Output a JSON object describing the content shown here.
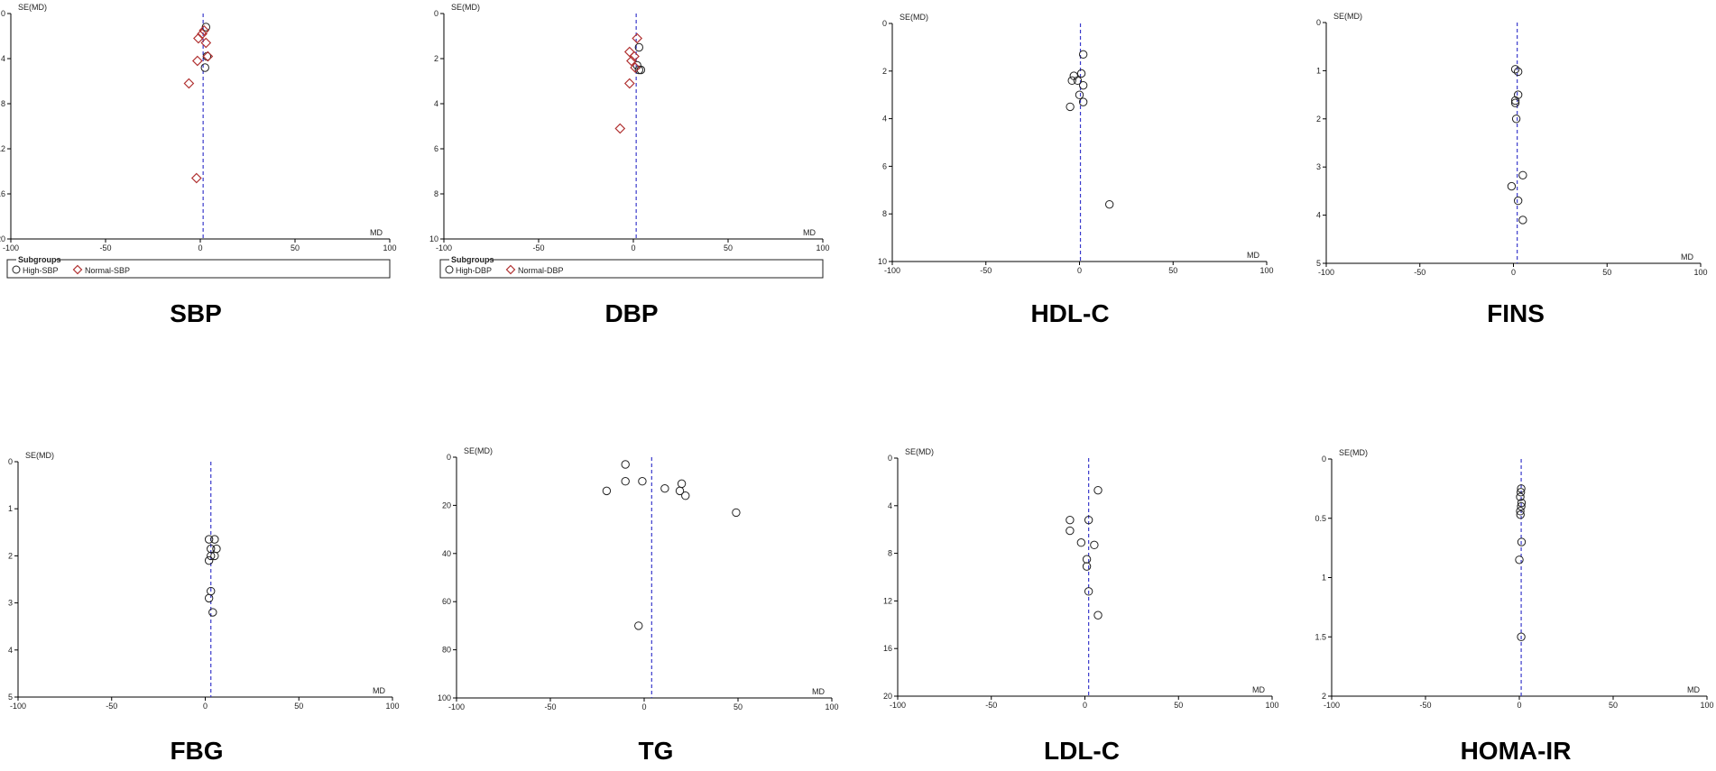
{
  "colors": {
    "high_marker": "#222222",
    "normal_marker": "#b03030",
    "pooled_line": "#3a3acc",
    "axis": "#000000"
  },
  "chart_data": [
    {
      "type": "scatter",
      "subtype": "funnel-plot",
      "panel_label": "SBP",
      "xlabel": "MD",
      "ylabel": "SE(MD)",
      "xlim": [
        -100,
        100
      ],
      "ylim": [
        0,
        20
      ],
      "y_inverted": true,
      "xticks": [
        -100,
        -50,
        0,
        50,
        100
      ],
      "yticks": [
        0,
        4,
        8,
        12,
        16,
        20
      ],
      "pooled_md": 1.5,
      "legend": {
        "title": "Subgroups",
        "entries": [
          "High-SBP",
          "Normal-SBP"
        ],
        "placement": "bottom"
      },
      "series": [
        {
          "name": "High-SBP",
          "marker": "circle",
          "points": [
            [
              3,
              1.2
            ],
            [
              3.5,
              3.8
            ],
            [
              2.5,
              4.8
            ]
          ]
        },
        {
          "name": "Normal-SBP",
          "marker": "diamond",
          "points": [
            [
              2,
              1.5
            ],
            [
              1,
              1.8
            ],
            [
              -1,
              2.2
            ],
            [
              3,
              2.6
            ],
            [
              4,
              3.8
            ],
            [
              -1.5,
              4.2
            ],
            [
              -6,
              6.2
            ],
            [
              -2,
              14.6
            ]
          ]
        }
      ]
    },
    {
      "type": "scatter",
      "subtype": "funnel-plot",
      "panel_label": "DBP",
      "xlabel": "MD",
      "ylabel": "SE(MD)",
      "xlim": [
        -100,
        100
      ],
      "ylim": [
        0,
        10
      ],
      "y_inverted": true,
      "xticks": [
        -100,
        -50,
        0,
        50,
        100
      ],
      "yticks": [
        0,
        2,
        4,
        6,
        8,
        10
      ],
      "pooled_md": 1.5,
      "legend": {
        "title": "Subgroups",
        "entries": [
          "High-DBP",
          "Normal-DBP"
        ],
        "placement": "bottom"
      },
      "series": [
        {
          "name": "High-DBP",
          "marker": "circle",
          "points": [
            [
              3,
              1.5
            ],
            [
              2,
              2.3
            ],
            [
              3,
              2.5
            ],
            [
              4,
              2.5
            ]
          ]
        },
        {
          "name": "Normal-DBP",
          "marker": "diamond",
          "points": [
            [
              2,
              1.1
            ],
            [
              -2,
              1.7
            ],
            [
              0.5,
              1.9
            ],
            [
              -1,
              2.1
            ],
            [
              1,
              2.4
            ],
            [
              -2,
              3.1
            ],
            [
              -7,
              5.1
            ]
          ]
        }
      ]
    },
    {
      "type": "scatter",
      "subtype": "funnel-plot",
      "panel_label": "HDL-C",
      "xlabel": "MD",
      "ylabel": "SE(MD)",
      "xlim": [
        -100,
        100
      ],
      "ylim": [
        0,
        10
      ],
      "y_inverted": true,
      "xticks": [
        -100,
        -50,
        0,
        50,
        100
      ],
      "yticks": [
        0,
        2,
        4,
        6,
        8,
        10
      ],
      "pooled_md": 0.5,
      "series": [
        {
          "name": "",
          "marker": "circle",
          "points": [
            [
              2,
              1.3
            ],
            [
              1,
              2.1
            ],
            [
              -3,
              2.2
            ],
            [
              -4,
              2.4
            ],
            [
              -1,
              2.4
            ],
            [
              2,
              2.6
            ],
            [
              0,
              3.0
            ],
            [
              2,
              3.3
            ],
            [
              -5,
              3.5
            ],
            [
              16,
              7.6
            ]
          ]
        }
      ]
    },
    {
      "type": "scatter",
      "subtype": "funnel-plot",
      "panel_label": "FINS",
      "xlabel": "MD",
      "ylabel": "SE(MD)",
      "xlim": [
        -100,
        100
      ],
      "ylim": [
        0,
        5
      ],
      "y_inverted": true,
      "xticks": [
        -100,
        -50,
        0,
        50,
        100
      ],
      "yticks": [
        0,
        1,
        2,
        3,
        4,
        5
      ],
      "pooled_md": 2,
      "series": [
        {
          "name": "",
          "marker": "circle",
          "points": [
            [
              1,
              0.97
            ],
            [
              2.5,
              1.02
            ],
            [
              2.5,
              1.5
            ],
            [
              1,
              1.62
            ],
            [
              1,
              1.67
            ],
            [
              1.5,
              2.0
            ],
            [
              5,
              3.17
            ],
            [
              -1,
              3.4
            ],
            [
              2.5,
              3.7
            ],
            [
              5,
              4.1
            ]
          ]
        }
      ]
    },
    {
      "type": "scatter",
      "subtype": "funnel-plot",
      "panel_label": "FBG",
      "xlabel": "MD",
      "ylabel": "SE(MD)",
      "xlim": [
        -100,
        100
      ],
      "ylim": [
        0,
        5
      ],
      "y_inverted": true,
      "xticks": [
        -100,
        -50,
        0,
        50,
        100
      ],
      "yticks": [
        0,
        1,
        2,
        3,
        4,
        5
      ],
      "pooled_md": 3,
      "series": [
        {
          "name": "",
          "marker": "circle",
          "points": [
            [
              2,
              1.65
            ],
            [
              5,
              1.65
            ],
            [
              3,
              1.85
            ],
            [
              6,
              1.85
            ],
            [
              3,
              2.0
            ],
            [
              5,
              2.0
            ],
            [
              2,
              2.1
            ],
            [
              3,
              2.75
            ],
            [
              2,
              2.9
            ],
            [
              4,
              3.2
            ]
          ]
        }
      ]
    },
    {
      "type": "scatter",
      "subtype": "funnel-plot",
      "panel_label": "TG",
      "xlabel": "MD",
      "ylabel": "SE(MD)",
      "xlim": [
        -100,
        100
      ],
      "ylim": [
        0,
        100
      ],
      "y_inverted": true,
      "xticks": [
        -100,
        -50,
        0,
        50,
        100
      ],
      "yticks": [
        0,
        20,
        40,
        60,
        80,
        100
      ],
      "pooled_md": 4,
      "series": [
        {
          "name": "",
          "marker": "circle",
          "points": [
            [
              -10,
              3
            ],
            [
              -10,
              10
            ],
            [
              -1,
              10
            ],
            [
              20,
              11
            ],
            [
              -20,
              14
            ],
            [
              11,
              13
            ],
            [
              19,
              14
            ],
            [
              22,
              16
            ],
            [
              49,
              23
            ],
            [
              -3,
              70
            ]
          ]
        }
      ]
    },
    {
      "type": "scatter",
      "subtype": "funnel-plot",
      "panel_label": "LDL-C",
      "xlabel": "MD",
      "ylabel": "SE(MD)",
      "xlim": [
        -100,
        100
      ],
      "ylim": [
        0,
        20
      ],
      "y_inverted": true,
      "xticks": [
        -100,
        -50,
        0,
        50,
        100
      ],
      "yticks": [
        0,
        4,
        8,
        12,
        16,
        20
      ],
      "pooled_md": 2,
      "series": [
        {
          "name": "",
          "marker": "circle",
          "points": [
            [
              7,
              2.7
            ],
            [
              -8,
              5.2
            ],
            [
              2,
              5.2
            ],
            [
              -8,
              6.1
            ],
            [
              -2,
              7.1
            ],
            [
              5,
              7.3
            ],
            [
              1,
              8.5
            ],
            [
              1,
              9.1
            ],
            [
              2,
              11.2
            ],
            [
              7,
              13.2
            ]
          ]
        }
      ]
    },
    {
      "type": "scatter",
      "subtype": "funnel-plot",
      "panel_label": "HOMA-IR",
      "xlabel": "MD",
      "ylabel": "SE(MD)",
      "xlim": [
        -100,
        100
      ],
      "ylim": [
        0,
        2
      ],
      "y_inverted": true,
      "xticks": [
        -100,
        -50,
        0,
        50,
        100
      ],
      "yticks": [
        0,
        0.5,
        1,
        1.5,
        2
      ],
      "pooled_md": 1,
      "series": [
        {
          "name": "",
          "marker": "circle",
          "points": [
            [
              1,
              0.25
            ],
            [
              0.8,
              0.28
            ],
            [
              0.5,
              0.32
            ],
            [
              1.2,
              0.37
            ],
            [
              1,
              0.4
            ],
            [
              0.5,
              0.44
            ],
            [
              0.6,
              0.47
            ],
            [
              1.2,
              0.7
            ],
            [
              0,
              0.85
            ],
            [
              1,
              1.5
            ]
          ]
        }
      ]
    }
  ]
}
